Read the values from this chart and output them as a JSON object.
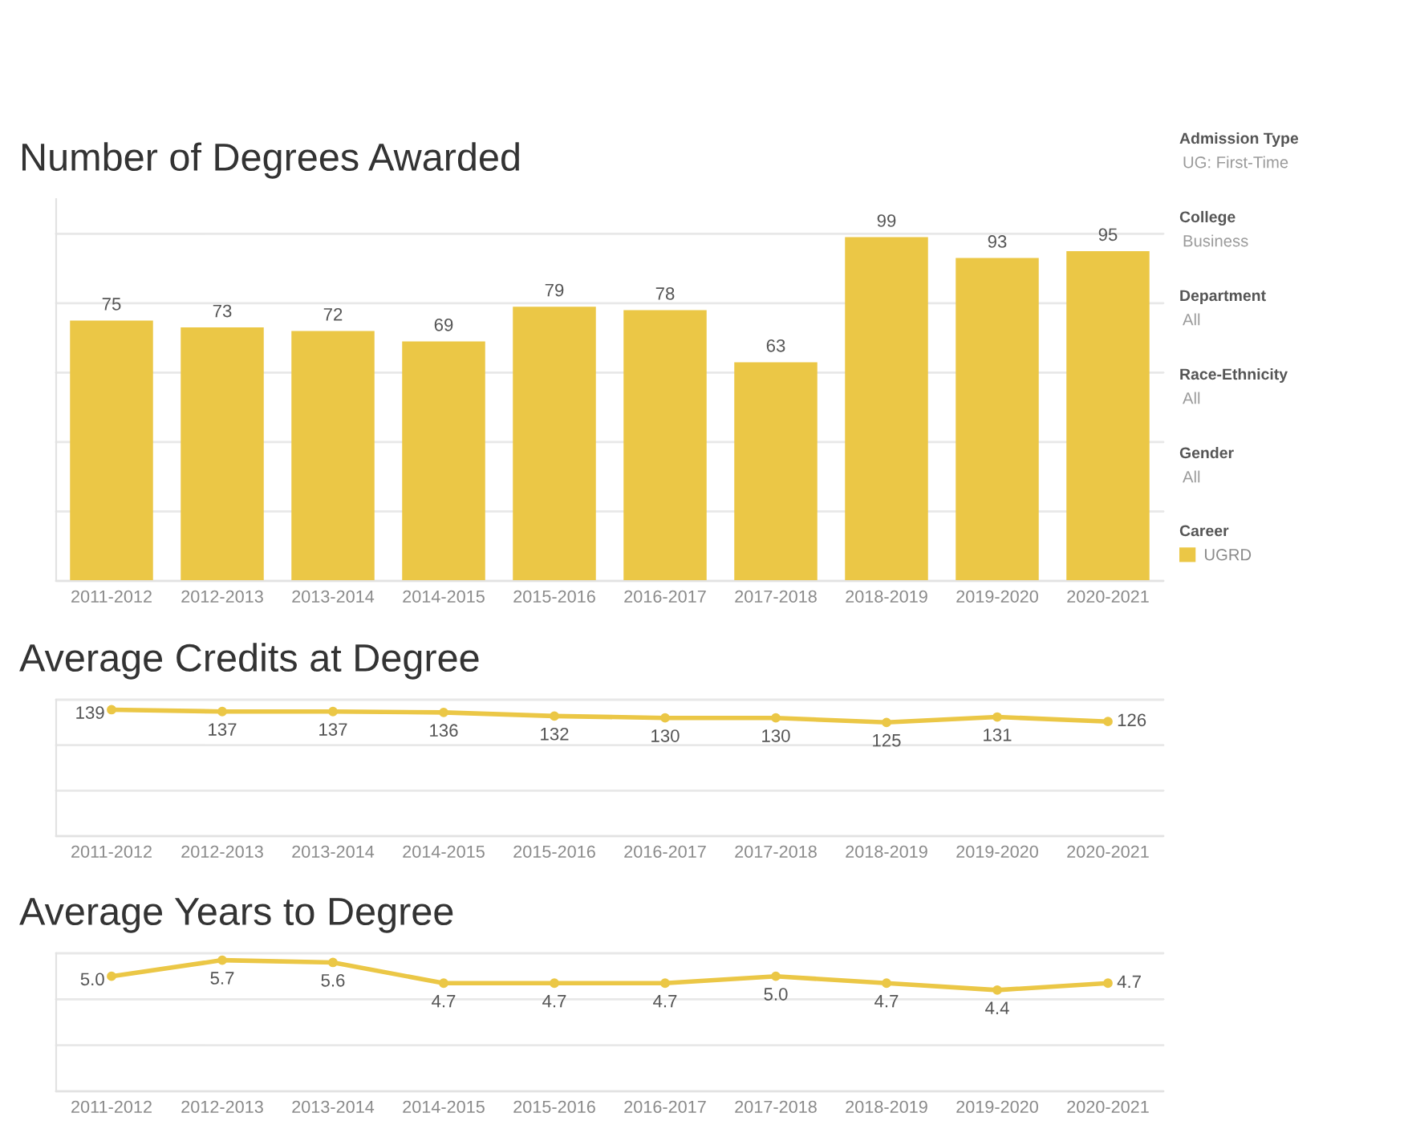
{
  "chart_data": [
    {
      "type": "bar",
      "title": "Number of Degrees Awarded",
      "categories": [
        "2011-2012",
        "2012-2013",
        "2013-2014",
        "2014-2015",
        "2015-2016",
        "2016-2017",
        "2017-2018",
        "2018-2019",
        "2019-2020",
        "2020-2021"
      ],
      "series": [
        {
          "name": "UGRD",
          "color": "#ebc746",
          "values": [
            75,
            73,
            72,
            69,
            79,
            78,
            63,
            99,
            93,
            95
          ]
        }
      ],
      "ylim": [
        0,
        110
      ],
      "yticks": [
        {
          "value": 0,
          "label": null
        },
        {
          "value": 20,
          "label": null
        },
        {
          "value": 40,
          "label": null
        },
        {
          "value": 60,
          "label": null
        },
        {
          "value": 80,
          "label": null
        },
        {
          "value": 100,
          "label": null
        }
      ],
      "grid": "y",
      "tick_labels": "x",
      "data_labels": true,
      "legend": "right",
      "legend_title": "Career",
      "annotations": [
        "Admission Type",
        "UG: First-Time",
        "College",
        "Business",
        "Department",
        "All",
        "Race-Ethnicity",
        "All",
        "Gender",
        "All"
      ]
    },
    {
      "type": "line",
      "title": "Average Credits at Degree",
      "categories": [
        "2011-2012",
        "2012-2013",
        "2013-2014",
        "2014-2015",
        "2015-2016",
        "2016-2017",
        "2017-2018",
        "2018-2019",
        "2019-2020",
        "2020-2021"
      ],
      "series": [
        {
          "color": "#ebc746",
          "values": [
            139,
            137,
            137,
            136,
            132,
            130,
            130,
            125,
            131,
            126
          ]
        }
      ],
      "ylim": [
        0,
        150
      ],
      "yticks": [
        {
          "value": 0,
          "label": null
        },
        {
          "value": 50,
          "label": null
        },
        {
          "value": 100,
          "label": null
        },
        {
          "value": 150,
          "label": null
        }
      ],
      "grid": "y",
      "tick_labels": "x",
      "data_labels": true,
      "marker": "circle",
      "line_style": "solid"
    },
    {
      "type": "line",
      "title": "Average Years to Degree",
      "categories": [
        "2011-2012",
        "2012-2013",
        "2013-2014",
        "2014-2015",
        "2015-2016",
        "2016-2017",
        "2017-2018",
        "2018-2019",
        "2019-2020",
        "2020-2021"
      ],
      "series": [
        {
          "color": "#ebc746",
          "values": [
            5.0,
            5.7,
            5.6,
            4.7,
            4.7,
            4.7,
            5.0,
            4.7,
            4.4,
            4.7
          ],
          "value_labels": [
            "5.0",
            "5.7",
            "5.6",
            "4.7",
            "4.7",
            "4.7",
            "5.0",
            "4.7",
            "4.4",
            "4.7"
          ]
        }
      ],
      "ylim": [
        0,
        6
      ],
      "yticks": [
        {
          "value": 0,
          "label": null
        },
        {
          "value": 2,
          "label": null
        },
        {
          "value": 4,
          "label": null
        },
        {
          "value": 6,
          "label": null
        }
      ],
      "grid": "y",
      "tick_labels": "x",
      "marker": "circle",
      "line_style": "solid"
    }
  ]
}
